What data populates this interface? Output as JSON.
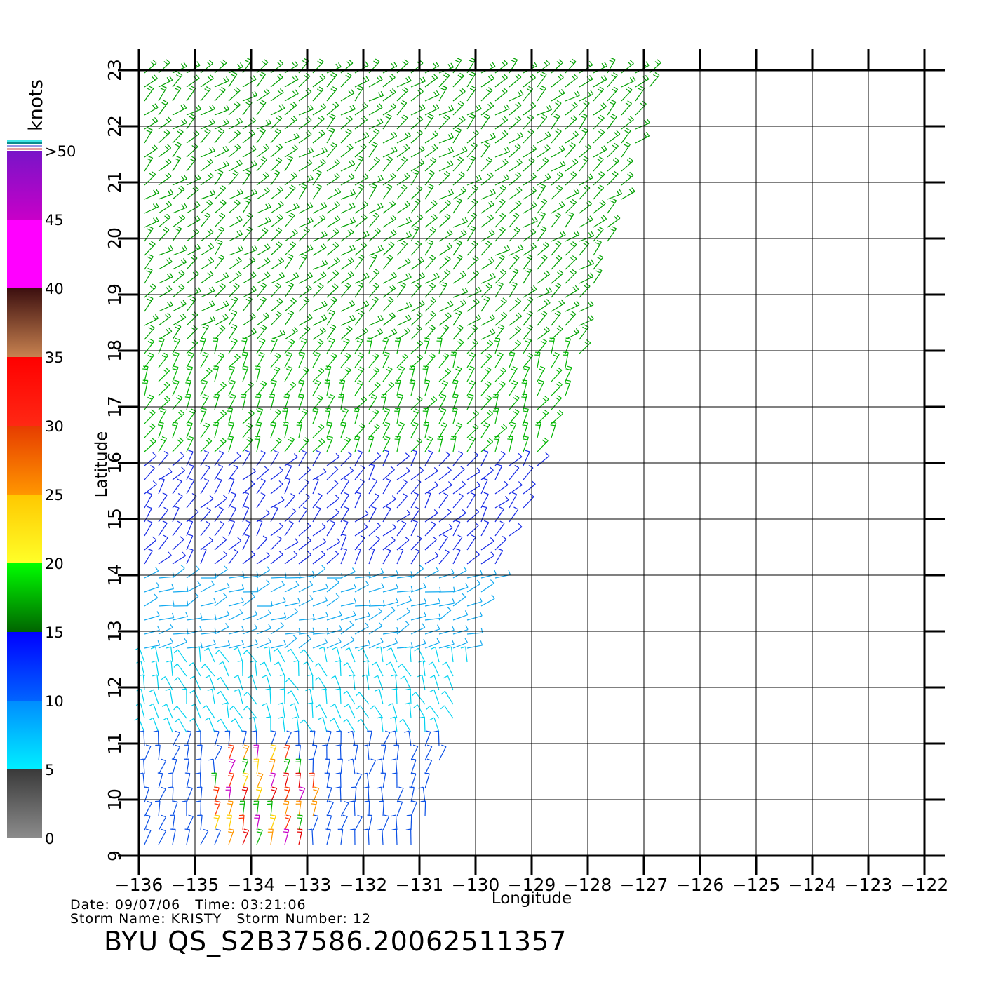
{
  "meta": {
    "date_label": "Date:",
    "date": "09/07/06",
    "time_label": "Time:",
    "time": "03:21:06",
    "storm_name_label": "Storm Name:",
    "storm_name": "KRISTY",
    "storm_number_label": "Storm Number:",
    "storm_number": "12",
    "product_id": "BYU QS_S2B37586.20062511357"
  },
  "axes": {
    "xlabel": "Longitude",
    "ylabel": "Latitude",
    "lon_ticks": [
      "-136",
      "-135",
      "-134",
      "-133",
      "-132",
      "-131",
      "-130",
      "-129",
      "-128",
      "-127",
      "-126",
      "-125",
      "-124",
      "-123",
      "-122"
    ],
    "lat_ticks": [
      "9",
      "10",
      "11",
      "12",
      "13",
      "14",
      "15",
      "16",
      "17",
      "18",
      "19",
      "20",
      "21",
      "22",
      "23"
    ],
    "lon_range": [
      -136,
      -122
    ],
    "lat_range": [
      9,
      23
    ],
    "grid": true
  },
  "colorbar": {
    "unit_label": "knots",
    "labels": [
      {
        "text": "0",
        "value": 0
      },
      {
        "text": "5",
        "value": 5
      },
      {
        "text": "10",
        "value": 10
      },
      {
        "text": "15",
        "value": 15
      },
      {
        "text": "20",
        "value": 20
      },
      {
        "text": "25",
        "value": 25
      },
      {
        "text": "30",
        "value": 30
      },
      {
        "text": "35",
        "value": 35
      },
      {
        "text": "40",
        "value": 40
      },
      {
        "text": "45",
        "value": 45
      },
      {
        "text": ">50",
        "value": 50
      }
    ],
    "bands": [
      {
        "min": 0,
        "max": 5,
        "top": "#3a3a3a",
        "bottom": "#8c8c8c"
      },
      {
        "min": 5,
        "max": 10,
        "top": "#008cff",
        "bottom": "#00f0ff"
      },
      {
        "min": 10,
        "max": 15,
        "top": "#0000ff",
        "bottom": "#0064ff"
      },
      {
        "min": 15,
        "max": 20,
        "top": "#00ff00",
        "bottom": "#006400"
      },
      {
        "min": 20,
        "max": 25,
        "top": "#ffc800",
        "bottom": "#ffff28"
      },
      {
        "min": 25,
        "max": 30,
        "top": "#e63c00",
        "bottom": "#ff9600"
      },
      {
        "min": 30,
        "max": 35,
        "top": "#ff0000",
        "bottom": "#ff2814"
      },
      {
        "min": 35,
        "max": 40,
        "top": "#3c0f0f",
        "bottom": "#c88250"
      },
      {
        "min": 40,
        "max": 45,
        "top": "#ff00ff",
        "bottom": "#ff00ff"
      },
      {
        "min": 45,
        "max": 50,
        "top": "#7814c8",
        "bottom": "#c800c8"
      }
    ],
    "top_stripes": [
      "#e6a0a0",
      "#9696e6",
      "#0a8c8c",
      "#40e6e6"
    ]
  },
  "swath_edge": [
    {
      "lat": 23.0,
      "lon": -126.8
    },
    {
      "lat": 22.0,
      "lon": -127.0
    },
    {
      "lat": 21.0,
      "lon": -127.3
    },
    {
      "lat": 20.0,
      "lon": -127.6
    },
    {
      "lat": 19.0,
      "lon": -127.9
    },
    {
      "lat": 18.0,
      "lon": -128.1
    },
    {
      "lat": 17.0,
      "lon": -128.4
    },
    {
      "lat": 16.0,
      "lon": -128.8
    },
    {
      "lat": 15.0,
      "lon": -129.2
    },
    {
      "lat": 14.0,
      "lon": -129.6
    },
    {
      "lat": 13.0,
      "lon": -130.0
    },
    {
      "lat": 12.0,
      "lon": -130.2
    },
    {
      "lat": 11.0,
      "lon": -130.5
    },
    {
      "lat": 10.0,
      "lon": -130.8
    },
    {
      "lat": 9.0,
      "lon": -131.0
    }
  ],
  "wind_regions": [
    {
      "lat_min": 18.2,
      "lat_max": 23.1,
      "speed": 17,
      "dir": 40,
      "color": "#00a000"
    },
    {
      "lat_min": 16.0,
      "lat_max": 18.2,
      "speed": 18,
      "dir": 60,
      "color": "#00b400"
    },
    {
      "lat_min": 14.0,
      "lat_max": 16.0,
      "speed": 12,
      "dir": 50,
      "color": "#1428e6"
    },
    {
      "lat_min": 12.5,
      "lat_max": 14.0,
      "speed": 8,
      "dir": 20,
      "color": "#14aaf0"
    },
    {
      "lat_min": 11.2,
      "lat_max": 12.5,
      "speed": 7,
      "dir": 110,
      "color": "#00d2f0"
    },
    {
      "lat_min": 9.0,
      "lat_max": 11.2,
      "speed": 14,
      "dir": 80,
      "color": "#0a50e6"
    }
  ],
  "storm_core": {
    "lon": -133.8,
    "lat": 9.9,
    "colors": [
      "#e60000",
      "#ff9600",
      "#ffd200",
      "#c800c8",
      "#ff3200",
      "#00b400"
    ]
  }
}
